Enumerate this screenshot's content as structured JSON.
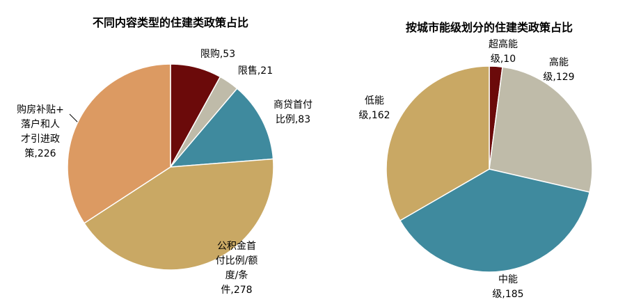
{
  "chart_data": [
    {
      "type": "pie",
      "title": "不同内容类型的住建类政策占比",
      "slices": [
        {
          "label_lines": [
            "限购,53"
          ],
          "value": 53,
          "color": "#6b0a0a"
        },
        {
          "label_lines": [
            "限售,21"
          ],
          "value": 21,
          "color": "#bfbba9"
        },
        {
          "label_lines": [
            "商贷首付",
            "比例,83"
          ],
          "value": 83,
          "color": "#3f8a9e"
        },
        {
          "label_lines": [
            "公积金首",
            "付比例/额",
            "度/条",
            "件,278"
          ],
          "value": 278,
          "color": "#c9a864"
        },
        {
          "label_lines": [
            "购房补贴+",
            "落户和人",
            "才引进政",
            "策,226"
          ],
          "value": 226,
          "color": "#dc9a62"
        }
      ]
    },
    {
      "type": "pie",
      "title": "按城市能级划分的住建类政策占比",
      "slices": [
        {
          "label_lines": [
            "超高能",
            "级,10"
          ],
          "value": 10,
          "color": "#6b0a0a"
        },
        {
          "label_lines": [
            "高能",
            "级,129"
          ],
          "value": 129,
          "color": "#bfbba9"
        },
        {
          "label_lines": [
            "中能",
            "级,185"
          ],
          "value": 185,
          "color": "#3f8a9e"
        },
        {
          "label_lines": [
            "低能",
            "级,162"
          ],
          "value": 162,
          "color": "#c9a864"
        }
      ]
    }
  ]
}
